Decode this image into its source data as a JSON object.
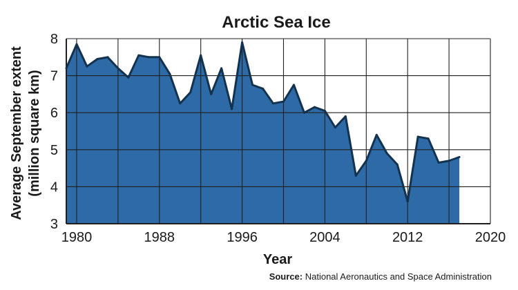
{
  "chart_data": {
    "type": "area",
    "title": "Arctic Sea Ice",
    "xlabel": "Year",
    "ylabel_line1": "Average September extent",
    "ylabel_line2": "(million square km)",
    "xlim": [
      1979,
      2020
    ],
    "ylim": [
      3,
      8
    ],
    "x_ticks": [
      1980,
      1988,
      1996,
      2004,
      2012,
      2020
    ],
    "y_ticks": [
      3,
      4,
      5,
      6,
      7,
      8
    ],
    "grid": true,
    "fill_color": "#2e6aa6",
    "line_color": "#13324f",
    "x": [
      1979,
      1980,
      1981,
      1982,
      1983,
      1984,
      1985,
      1986,
      1987,
      1988,
      1989,
      1990,
      1991,
      1992,
      1993,
      1994,
      1995,
      1996,
      1997,
      1998,
      1999,
      2000,
      2001,
      2002,
      2003,
      2004,
      2005,
      2006,
      2007,
      2008,
      2009,
      2010,
      2011,
      2012,
      2013,
      2014,
      2015,
      2016,
      2017
    ],
    "values": [
      7.2,
      7.85,
      7.25,
      7.45,
      7.5,
      7.2,
      6.95,
      7.55,
      7.5,
      7.5,
      7.05,
      6.25,
      6.55,
      7.55,
      6.5,
      7.2,
      6.1,
      7.9,
      6.75,
      6.65,
      6.25,
      6.3,
      6.75,
      6.0,
      6.15,
      6.05,
      5.6,
      5.9,
      4.3,
      4.7,
      5.4,
      4.9,
      4.6,
      3.6,
      5.35,
      5.3,
      4.65,
      4.7,
      4.8
    ]
  },
  "source": {
    "prefix": "Source:",
    "text": "National Aeronautics and Space Administration"
  }
}
